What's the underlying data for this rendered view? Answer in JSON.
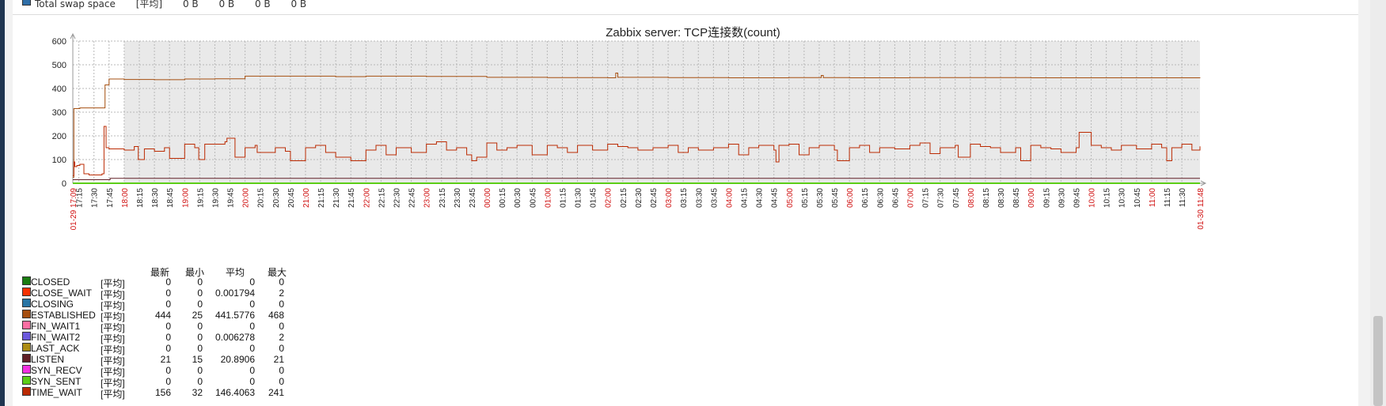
{
  "top_row": {
    "name": "Total swap space",
    "func": "[平均]",
    "values": [
      "0 B",
      "0 B",
      "0 B",
      "0 B"
    ],
    "color": "#2f6fa8"
  },
  "legend_headers": {
    "last": "最新",
    "min": "最小",
    "avg": "平均",
    "max": "最大"
  },
  "legend_items": [
    {
      "name": "CLOSED",
      "func": "[平均]",
      "last": "0",
      "min": "0",
      "avg": "0",
      "max": "0",
      "color": "#1a7c11"
    },
    {
      "name": "CLOSE_WAIT",
      "func": "[平均]",
      "last": "0",
      "min": "0",
      "avg": "0.001794",
      "max": "2",
      "color": "#f63100"
    },
    {
      "name": "CLOSING",
      "func": "[平均]",
      "last": "0",
      "min": "0",
      "avg": "0",
      "max": "0",
      "color": "#2774a4"
    },
    {
      "name": "ESTABLISHED",
      "func": "[平均]",
      "last": "444",
      "min": "25",
      "avg": "441.5776",
      "max": "468",
      "color": "#a54f10"
    },
    {
      "name": "FIN_WAIT1",
      "func": "[平均]",
      "last": "0",
      "min": "0",
      "avg": "0",
      "max": "0",
      "color": "#fc6ea3"
    },
    {
      "name": "FIN_WAIT2",
      "func": "[平均]",
      "last": "0",
      "min": "0",
      "avg": "0.006278",
      "max": "2",
      "color": "#6c59dc"
    },
    {
      "name": "LAST_ACK",
      "func": "[平均]",
      "last": "0",
      "min": "0",
      "avg": "0",
      "max": "0",
      "color": "#ac8c14"
    },
    {
      "name": "LISTEN",
      "func": "[平均]",
      "last": "21",
      "min": "15",
      "avg": "20.8906",
      "max": "21",
      "color": "#611f27"
    },
    {
      "name": "SYN_RECV",
      "func": "[平均]",
      "last": "0",
      "min": "0",
      "avg": "0",
      "max": "0",
      "color": "#f230e0"
    },
    {
      "name": "SYN_SENT",
      "func": "[平均]",
      "last": "0",
      "min": "0",
      "avg": "0",
      "max": "0",
      "color": "#5ccd18"
    },
    {
      "name": "TIME_WAIT",
      "func": "[平均]",
      "last": "156",
      "min": "32",
      "avg": "146.4063",
      "max": "241",
      "color": "#bb2a02"
    }
  ],
  "chart_data": {
    "type": "line",
    "title": "Zabbix server: TCP连接数(count)",
    "ylim": [
      0,
      600
    ],
    "yticks": [
      0,
      100,
      200,
      300,
      400,
      500,
      600
    ],
    "start_label": "01-29 17:09",
    "end_label": "01-30 11:48",
    "x_tick_labels": [
      "17:15",
      "17:30",
      "17:45",
      "18:00",
      "18:15",
      "18:30",
      "18:45",
      "19:00",
      "19:15",
      "19:30",
      "19:45",
      "20:00",
      "20:15",
      "20:30",
      "20:45",
      "21:00",
      "21:15",
      "21:30",
      "21:45",
      "22:00",
      "22:15",
      "22:30",
      "22:45",
      "23:00",
      "23:15",
      "23:30",
      "23:45",
      "00:00",
      "00:15",
      "00:30",
      "00:45",
      "01:00",
      "01:15",
      "01:30",
      "01:45",
      "02:00",
      "02:15",
      "02:30",
      "02:45",
      "03:00",
      "03:15",
      "03:30",
      "03:45",
      "04:00",
      "04:15",
      "04:30",
      "04:45",
      "05:00",
      "05:15",
      "05:30",
      "05:45",
      "06:00",
      "06:15",
      "06:30",
      "06:45",
      "07:00",
      "07:15",
      "07:30",
      "07:45",
      "08:00",
      "08:15",
      "08:30",
      "08:45",
      "09:00",
      "09:15",
      "09:30",
      "09:45",
      "10:00",
      "10:15",
      "10:30",
      "10:45",
      "11:00",
      "11:15",
      "11:30"
    ],
    "grid": true,
    "series": [
      {
        "name": "ESTABLISHED",
        "color": "#a54f10",
        "x": [
          "17:09",
          "17:10",
          "17:16",
          "17:30",
          "17:39",
          "17:41",
          "17:45",
          "18:00",
          "18:30",
          "19:00",
          "19:30",
          "20:00",
          "20:30",
          "21:00",
          "21:30",
          "22:00",
          "22:30",
          "23:00",
          "23:30",
          "00:00",
          "00:30",
          "01:00",
          "01:30",
          "02:00",
          "02:08",
          "02:10",
          "02:30",
          "03:00",
          "03:30",
          "04:00",
          "04:30",
          "05:00",
          "05:30",
          "05:32",
          "05:34",
          "06:00",
          "06:30",
          "07:00",
          "07:30",
          "08:00",
          "08:30",
          "09:00",
          "09:30",
          "10:00",
          "10:30",
          "11:00",
          "11:30",
          "11:48"
        ],
        "values": [
          25,
          315,
          318,
          318,
          318,
          415,
          440,
          438,
          437,
          440,
          441,
          452,
          452,
          452,
          450,
          452,
          452,
          451,
          451,
          447,
          447,
          446,
          446,
          445,
          465,
          447,
          447,
          446,
          446,
          445,
          445,
          446,
          446,
          455,
          446,
          445,
          445,
          446,
          446,
          446,
          446,
          445,
          445,
          445,
          445,
          445,
          445,
          444
        ]
      },
      {
        "name": "TIME_WAIT",
        "color": "#bb2a02",
        "x": [
          "17:09",
          "17:10",
          "17:11",
          "17:13",
          "17:16",
          "17:20",
          "17:25",
          "17:30",
          "17:38",
          "17:40",
          "17:42",
          "17:45",
          "18:00",
          "18:10",
          "18:14",
          "18:20",
          "18:30",
          "18:40",
          "18:45",
          "19:00",
          "19:10",
          "19:14",
          "19:20",
          "19:40",
          "19:42",
          "19:50",
          "20:00",
          "20:10",
          "20:12",
          "20:30",
          "20:40",
          "20:45",
          "21:00",
          "21:10",
          "21:20",
          "21:30",
          "21:45",
          "22:00",
          "22:10",
          "22:20",
          "22:30",
          "22:45",
          "23:00",
          "23:10",
          "23:20",
          "23:30",
          "23:40",
          "23:45",
          "23:50",
          "00:00",
          "00:10",
          "00:20",
          "00:30",
          "00:45",
          "01:00",
          "01:10",
          "01:20",
          "01:30",
          "01:45",
          "02:00",
          "02:10",
          "02:20",
          "02:30",
          "02:45",
          "03:00",
          "03:10",
          "03:20",
          "03:30",
          "03:45",
          "04:00",
          "04:10",
          "04:20",
          "04:30",
          "04:45",
          "04:47",
          "04:50",
          "05:00",
          "05:10",
          "05:20",
          "05:30",
          "05:45",
          "05:48",
          "06:00",
          "06:10",
          "06:20",
          "06:30",
          "06:45",
          "07:00",
          "07:10",
          "07:20",
          "07:30",
          "07:45",
          "07:48",
          "08:00",
          "08:10",
          "08:20",
          "08:30",
          "08:45",
          "08:50",
          "09:00",
          "09:10",
          "09:20",
          "09:30",
          "09:45",
          "09:48",
          "10:00",
          "10:10",
          "10:20",
          "10:30",
          "10:45",
          "11:00",
          "11:10",
          "11:15",
          "11:20",
          "11:30",
          "11:40",
          "11:48"
        ],
        "values": [
          32,
          90,
          70,
          75,
          80,
          40,
          35,
          35,
          40,
          240,
          150,
          145,
          140,
          155,
          100,
          145,
          135,
          150,
          105,
          165,
          150,
          100,
          165,
          175,
          190,
          110,
          150,
          160,
          130,
          150,
          135,
          95,
          150,
          160,
          130,
          110,
          95,
          140,
          160,
          120,
          150,
          130,
          165,
          175,
          140,
          150,
          120,
          95,
          110,
          170,
          140,
          150,
          160,
          120,
          160,
          150,
          130,
          160,
          140,
          165,
          155,
          150,
          140,
          150,
          160,
          130,
          150,
          140,
          150,
          165,
          120,
          150,
          160,
          140,
          90,
          160,
          165,
          120,
          150,
          160,
          140,
          95,
          150,
          160,
          130,
          150,
          145,
          160,
          170,
          125,
          150,
          160,
          110,
          165,
          155,
          150,
          130,
          150,
          95,
          160,
          150,
          145,
          130,
          150,
          215,
          160,
          150,
          140,
          160,
          145,
          165,
          150,
          95,
          150,
          165,
          140,
          156
        ]
      },
      {
        "name": "LISTEN",
        "color": "#611f27",
        "x": [
          "17:09",
          "17:45",
          "17:46",
          "11:48"
        ],
        "values": [
          15,
          15,
          21,
          21
        ]
      },
      {
        "name": "SYN_SENT",
        "color": "#5ccd18",
        "x": [
          "17:09",
          "11:48"
        ],
        "values": [
          0,
          0
        ]
      }
    ]
  }
}
